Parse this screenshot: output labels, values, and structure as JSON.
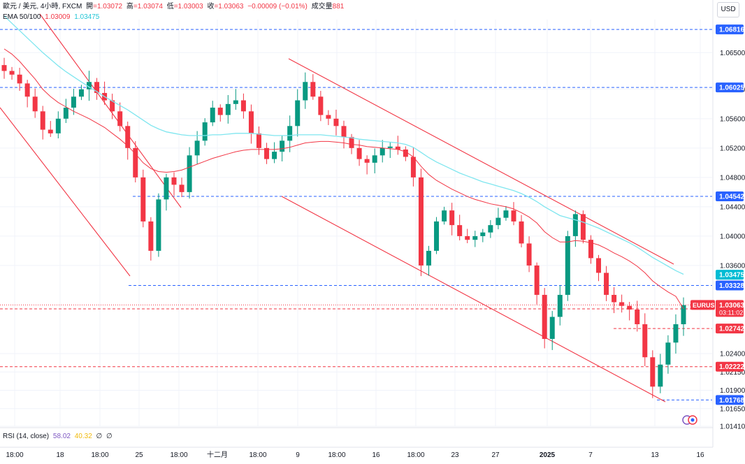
{
  "header": {
    "symbol": "歐元 / 美元, 4小時, FXCM",
    "open_label": "開",
    "open_value": "=1.03072",
    "high_label": "高",
    "high_value": "=1.03074",
    "low_label": "低",
    "low_value": "=1.03003",
    "close_label": "收",
    "close_value": "=1.03063",
    "change": "−0.00009 (−0.01%)",
    "volume_label": "成交量",
    "volume_value": "881",
    "ema_label": "EMA 50/100",
    "ema50_value": "1.03009",
    "ema100_value": "1.03475",
    "rsi_label": "RSI (14, close)",
    "rsi_value": "58.02",
    "rsi_ma_value": "40.32",
    "rsi_extra1": "∅",
    "rsi_extra2": "∅"
  },
  "currency_button": "USD",
  "colors": {
    "up": "#089981",
    "down": "#f23645",
    "ema50": "#f23645",
    "ema100": "#7fe6ef",
    "channel": "#f23645",
    "level_blue": "#2962ff",
    "level_red": "#f23645",
    "ema100_tag": "#00bcd4"
  },
  "chart_data": {
    "type": "candlestick",
    "title": "歐元 / 美元, 4小時, FXCM",
    "ylim": [
      1.0141,
      1.0695
    ],
    "y_ticks": [
      "1.06500",
      "1.06000",
      "1.05600",
      "1.05200",
      "1.04800",
      "1.04400",
      "1.04000",
      "1.03600",
      "1.02400",
      "1.02150",
      "1.01900",
      "1.01650",
      "1.01410"
    ],
    "x_ticks": [
      "18:00",
      "18",
      "18:00",
      "25",
      "18:00",
      "十二月",
      "18:00",
      "9",
      "18:00",
      "16",
      "18:00",
      "23",
      "27",
      "2025",
      "7",
      "13",
      "16"
    ],
    "price_levels": [
      {
        "value": 1.06816,
        "label": "1.06816",
        "style": "blue"
      },
      {
        "value": 1.06025,
        "label": "1.06025",
        "style": "blue"
      },
      {
        "value": 1.04542,
        "label": "1.04542",
        "style": "blue"
      },
      {
        "value": 1.03475,
        "label": "1.03475",
        "style": "ema100"
      },
      {
        "value": 1.03328,
        "label": "1.03328",
        "style": "blue"
      },
      {
        "value": 1.03009,
        "label": "1.03009",
        "style": "red"
      },
      {
        "value": 1.02742,
        "label": "1.02742",
        "style": "red"
      },
      {
        "value": 1.02222,
        "label": "1.02222",
        "style": "red"
      },
      {
        "value": 1.01768,
        "label": "1.01768",
        "style": "blue"
      }
    ],
    "last_price": {
      "symbol": "EURUSD",
      "value": "1.03063",
      "countdown": "03:11:02"
    },
    "close_series": [
      1.0625,
      1.062,
      1.0608,
      1.059,
      1.057,
      1.0545,
      1.054,
      1.056,
      1.0575,
      1.059,
      1.06,
      1.061,
      1.0595,
      1.0585,
      1.057,
      1.055,
      1.052,
      1.048,
      1.042,
      1.038,
      1.045,
      1.048,
      1.047,
      1.046,
      1.051,
      1.053,
      1.0555,
      1.0575,
      1.0565,
      1.058,
      1.0585,
      1.057,
      1.054,
      1.052,
      1.0505,
      1.0515,
      1.053,
      1.055,
      1.0585,
      1.061,
      1.059,
      1.0565,
      1.056,
      1.055,
      1.0535,
      1.052,
      1.0505,
      1.05,
      1.051,
      1.052,
      1.0522,
      1.0518,
      1.0508,
      1.048,
      1.036,
      1.038,
      1.042,
      1.0435,
      1.0415,
      1.04,
      1.0395,
      1.04,
      1.0405,
      1.0415,
      1.0425,
      1.0435,
      1.042,
      1.039,
      1.036,
      1.032,
      1.026,
      1.029,
      1.032,
      1.04,
      1.043,
      1.0395,
      1.037,
      1.035,
      1.032,
      1.031,
      1.0305,
      1.03,
      1.028,
      1.0235,
      1.0195,
      1.0225,
      1.0255,
      1.028,
      1.0306
    ],
    "ema50_series": [
      1.0655,
      1.0648,
      1.0638,
      1.0626,
      1.0614,
      1.06,
      1.059,
      1.0582,
      1.0576,
      1.057,
      1.0565,
      1.056,
      1.0554,
      1.0548,
      1.054,
      1.0532,
      1.0523,
      1.0512,
      1.05,
      1.0492,
      1.0488,
      1.0487,
      1.0488,
      1.049,
      1.0494,
      1.0498,
      1.0502,
      1.0506,
      1.0509,
      1.0512,
      1.0515,
      1.0517,
      1.0518,
      1.0518,
      1.0518,
      1.0518,
      1.0519,
      1.0521,
      1.0524,
      1.0527,
      1.0528,
      1.0529,
      1.0529,
      1.0528,
      1.0527,
      1.0525,
      1.0524,
      1.0522,
      1.0521,
      1.052,
      1.0519,
      1.0518,
      1.0515,
      1.0508,
      1.0495,
      1.0484,
      1.0476,
      1.047,
      1.0464,
      1.0459,
      1.0454,
      1.045,
      1.0447,
      1.0444,
      1.0442,
      1.044,
      1.0437,
      1.0432,
      1.0426,
      1.0418,
      1.0406,
      1.0398,
      1.0392,
      1.0392,
      1.0394,
      1.0393,
      1.0391,
      1.0388,
      1.0383,
      1.0377,
      1.0372,
      1.0366,
      1.0359,
      1.035,
      1.0339,
      1.0331,
      1.0324,
      1.0318,
      1.0301
    ],
    "ema100_series": [
      1.07,
      1.069,
      1.068,
      1.067,
      1.066,
      1.065,
      1.0641,
      1.0632,
      1.0624,
      1.0617,
      1.061,
      1.0603,
      1.0597,
      1.059,
      1.0584,
      1.0578,
      1.0572,
      1.0565,
      1.0558,
      1.0551,
      1.0546,
      1.0542,
      1.054,
      1.0538,
      1.0537,
      1.0537,
      1.0537,
      1.0538,
      1.0538,
      1.0539,
      1.054,
      1.054,
      1.054,
      1.0539,
      1.0538,
      1.0537,
      1.0537,
      1.0537,
      1.0538,
      1.0538,
      1.0538,
      1.0538,
      1.0537,
      1.0536,
      1.0535,
      1.0534,
      1.0532,
      1.0531,
      1.053,
      1.0529,
      1.0528,
      1.0527,
      1.0525,
      1.0521,
      1.0514,
      1.0507,
      1.0501,
      1.0496,
      1.0491,
      1.0486,
      1.0482,
      1.0478,
      1.0474,
      1.0471,
      1.0468,
      1.0465,
      1.0462,
      1.0458,
      1.0453,
      1.0447,
      1.044,
      1.0434,
      1.0428,
      1.0425,
      1.0422,
      1.0419,
      1.0415,
      1.0411,
      1.0406,
      1.0401,
      1.0396,
      1.0391,
      1.0385,
      1.0378,
      1.0371,
      1.0365,
      1.0359,
      1.0353,
      1.0348
    ]
  }
}
